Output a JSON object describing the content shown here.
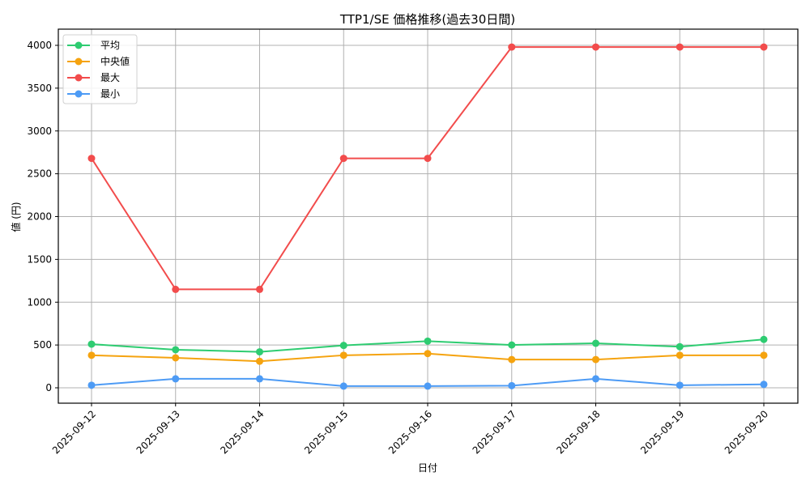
{
  "chart_data": {
    "type": "line",
    "title": "TTP1/SE 価格推移(過去30日間)",
    "xlabel": "日付",
    "ylabel": "値 (円)",
    "x": [
      "2025-09-12",
      "2025-09-13",
      "2025-09-14",
      "2025-09-15",
      "2025-09-16",
      "2025-09-17",
      "2025-09-18",
      "2025-09-19",
      "2025-09-20"
    ],
    "yticks": [
      0,
      500,
      1000,
      1500,
      2000,
      2500,
      3000,
      3500,
      4000
    ],
    "ylim": [
      -180,
      4180
    ],
    "grid": true,
    "legend_position": "upper left",
    "series": [
      {
        "name": "平均",
        "color": "#2ecc71",
        "values": [
          510,
          445,
          420,
          495,
          545,
          500,
          520,
          480,
          565
        ]
      },
      {
        "name": "中央値",
        "color": "#f5a30f",
        "values": [
          380,
          350,
          310,
          380,
          400,
          330,
          330,
          380,
          380
        ]
      },
      {
        "name": "最大",
        "color": "#f24c4c",
        "values": [
          2680,
          1150,
          1150,
          2680,
          2680,
          3980,
          3980,
          3980,
          3980
        ]
      },
      {
        "name": "最小",
        "color": "#4d9bf5",
        "values": [
          30,
          105,
          105,
          20,
          20,
          25,
          105,
          30,
          40
        ]
      }
    ]
  }
}
